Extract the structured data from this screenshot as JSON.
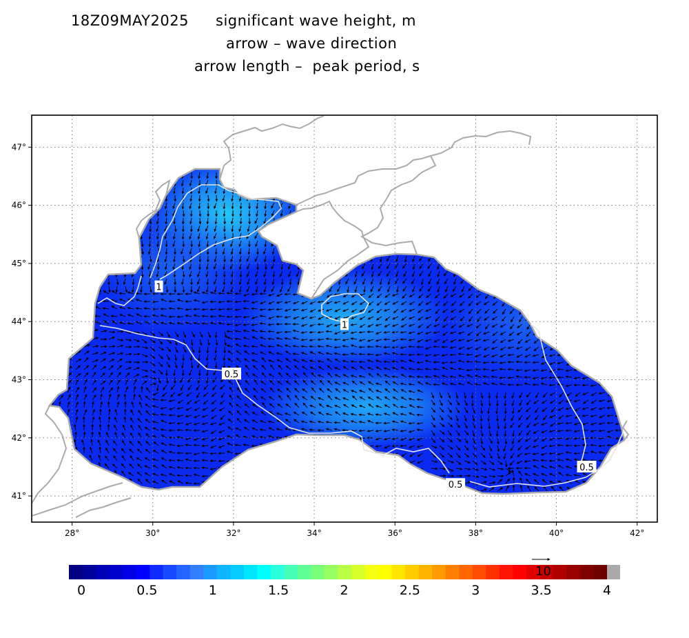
{
  "header": {
    "date": "18Z09MAY2025",
    "line1": "significant wave height, m",
    "line2": "arrow – wave direction",
    "line3": "arrow length –  peak period, s"
  },
  "map": {
    "lon_range": [
      27,
      42.5
    ],
    "lat_range": [
      40.55,
      47.55
    ],
    "lon_ticks": [
      "28°",
      "30°",
      "32°",
      "34°",
      "36°",
      "38°",
      "40°",
      "42°"
    ],
    "lat_ticks": [
      "47°",
      "46°",
      "45°",
      "44°",
      "43°",
      "42°",
      "41°"
    ],
    "gridlines": true,
    "contour_labels": [
      {
        "text": "1",
        "lon": 30.15,
        "lat": 44.6
      },
      {
        "text": "1",
        "lon": 34.75,
        "lat": 43.95
      },
      {
        "text": "0.5",
        "lon": 31.95,
        "lat": 43.1
      },
      {
        "text": "0.5",
        "lon": 37.5,
        "lat": 41.2
      },
      {
        "text": "0.5",
        "lon": 40.75,
        "lat": 41.5
      }
    ],
    "land_color": "#ffffff",
    "coast_color": "#aaaaaa",
    "sea_base_color": "#0a2af0",
    "sea_high_color": "#1f9af5"
  },
  "colorbar": {
    "labels": [
      "0",
      "0.5",
      "1",
      "1.5",
      "2",
      "2.5",
      "3",
      "3.5",
      "4"
    ],
    "vmin": 0,
    "vmax": 4,
    "step": 0.1,
    "colors": [
      "#000080",
      "#00009a",
      "#0000b4",
      "#0000cc",
      "#0000e6",
      "#0000ff",
      "#0d2bff",
      "#1a4aff",
      "#2565ff",
      "#3080ff",
      "#1a9bff",
      "#10b4ff",
      "#05ccff",
      "#00e6ff",
      "#00ffff",
      "#2affdf",
      "#45ffb8",
      "#60ff98",
      "#7aff7a",
      "#98ff60",
      "#b8ff45",
      "#d8ff2a",
      "#f5ff10",
      "#ffff00",
      "#ffe600",
      "#ffcc00",
      "#ffb400",
      "#ff9a00",
      "#ff8000",
      "#ff6600",
      "#ff4c00",
      "#ff3000",
      "#ff1400",
      "#ff0000",
      "#e00000",
      "#c80000",
      "#b00000",
      "#980000",
      "#800000",
      "#700000"
    ],
    "overflow_color": "#aaaaaa",
    "reference_arrow_label": "10"
  }
}
